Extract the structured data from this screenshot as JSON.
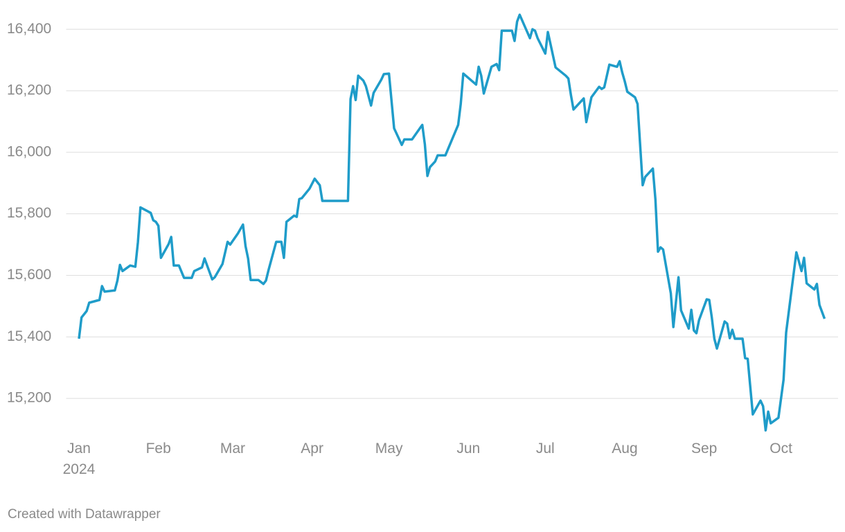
{
  "chart_data": {
    "type": "line",
    "credit": "Created with Datawrapper",
    "x": [
      1,
      2,
      4,
      5,
      9,
      10,
      11,
      15,
      16,
      17,
      18,
      21,
      23,
      24,
      25,
      29,
      30,
      31,
      32,
      33,
      36,
      37,
      38,
      40,
      42,
      45,
      46,
      49,
      50,
      53,
      54,
      57,
      59,
      60,
      63,
      65,
      66,
      67,
      68,
      71,
      73,
      74,
      75,
      78,
      80,
      81,
      82,
      85,
      86,
      87,
      88,
      91,
      93,
      95,
      96,
      106,
      107,
      108,
      109,
      110,
      112,
      113,
      115,
      116,
      119,
      120,
      122,
      124,
      127,
      128,
      131,
      135,
      136,
      137,
      138,
      140,
      141,
      144,
      149,
      150,
      151,
      156,
      157,
      158,
      159,
      162,
      164,
      165,
      166,
      170,
      171,
      172,
      173,
      177,
      178,
      179,
      180,
      183,
      184,
      185,
      187,
      191,
      192,
      193,
      194,
      198,
      199,
      201,
      204,
      205,
      206,
      208,
      211,
      212,
      213,
      214,
      215,
      218,
      219,
      221,
      222,
      225,
      226,
      227,
      228,
      229,
      232,
      233,
      235,
      236,
      239,
      240,
      241,
      242,
      243,
      246,
      247,
      248,
      249,
      250,
      253,
      254,
      255,
      256,
      257,
      260,
      261,
      262,
      264,
      267,
      268,
      269,
      270,
      271,
      274,
      276,
      277,
      281,
      283,
      284,
      285,
      288,
      289,
      290,
      292
    ],
    "series": [
      {
        "color": "#1f9cc9",
        "values": [
          15394,
          15463,
          15484,
          15511,
          15520,
          15565,
          15547,
          15551,
          15583,
          15634,
          15614,
          15632,
          15628,
          15707,
          15821,
          15803,
          15779,
          15774,
          15761,
          15657,
          15702,
          15725,
          15632,
          15632,
          15592,
          15592,
          15614,
          15626,
          15655,
          15587,
          15594,
          15637,
          15709,
          15700,
          15736,
          15765,
          15695,
          15655,
          15585,
          15585,
          15572,
          15583,
          15617,
          15709,
          15709,
          15657,
          15774,
          15794,
          15790,
          15848,
          15851,
          15882,
          15914,
          15893,
          15842,
          15842,
          16173,
          16215,
          16170,
          16249,
          16233,
          16215,
          16152,
          16193,
          16236,
          16254,
          16256,
          16078,
          16024,
          16042,
          16042,
          16089,
          16026,
          15923,
          15952,
          15970,
          15990,
          15990,
          16089,
          16157,
          16256,
          16220,
          16278,
          16249,
          16191,
          16278,
          16287,
          16267,
          16395,
          16395,
          16362,
          16425,
          16447,
          16371,
          16400,
          16395,
          16371,
          16321,
          16391,
          16353,
          16276,
          16249,
          16240,
          16186,
          16139,
          16175,
          16098,
          16179,
          16213,
          16206,
          16211,
          16285,
          16278,
          16296,
          16260,
          16231,
          16197,
          16179,
          16157,
          15893,
          15920,
          15947,
          15846,
          15677,
          15691,
          15684,
          15542,
          15432,
          15594,
          15486,
          15427,
          15488,
          15421,
          15412,
          15454,
          15522,
          15520,
          15463,
          15394,
          15362,
          15450,
          15443,
          15396,
          15423,
          15394,
          15394,
          15331,
          15329,
          15148,
          15193,
          15175,
          15096,
          15157,
          15119,
          15137,
          15261,
          15414,
          15675,
          15614,
          15657,
          15574,
          15554,
          15572,
          15504,
          15459
        ]
      }
    ],
    "xlim": [
      -4,
      297
    ],
    "xticks": [
      {
        "value": 1,
        "label": "Jan\n2024"
      },
      {
        "value": 32,
        "label": "Feb"
      },
      {
        "value": 61,
        "label": "Mar"
      },
      {
        "value": 92,
        "label": "Apr"
      },
      {
        "value": 122,
        "label": "May"
      },
      {
        "value": 153,
        "label": "Jun"
      },
      {
        "value": 183,
        "label": "Jul"
      },
      {
        "value": 214,
        "label": "Aug"
      },
      {
        "value": 245,
        "label": "Sep"
      },
      {
        "value": 275,
        "label": "Oct"
      }
    ],
    "ylim": [
      15090,
      16450
    ],
    "yticks": [
      {
        "value": 15200,
        "label": "15,200"
      },
      {
        "value": 15400,
        "label": "15,400"
      },
      {
        "value": 15600,
        "label": "15,600"
      },
      {
        "value": 15800,
        "label": "15,800"
      },
      {
        "value": 16000,
        "label": "16,000"
      },
      {
        "value": 16200,
        "label": "16,200"
      },
      {
        "value": 16400,
        "label": "16,400"
      }
    ],
    "grid": true
  }
}
